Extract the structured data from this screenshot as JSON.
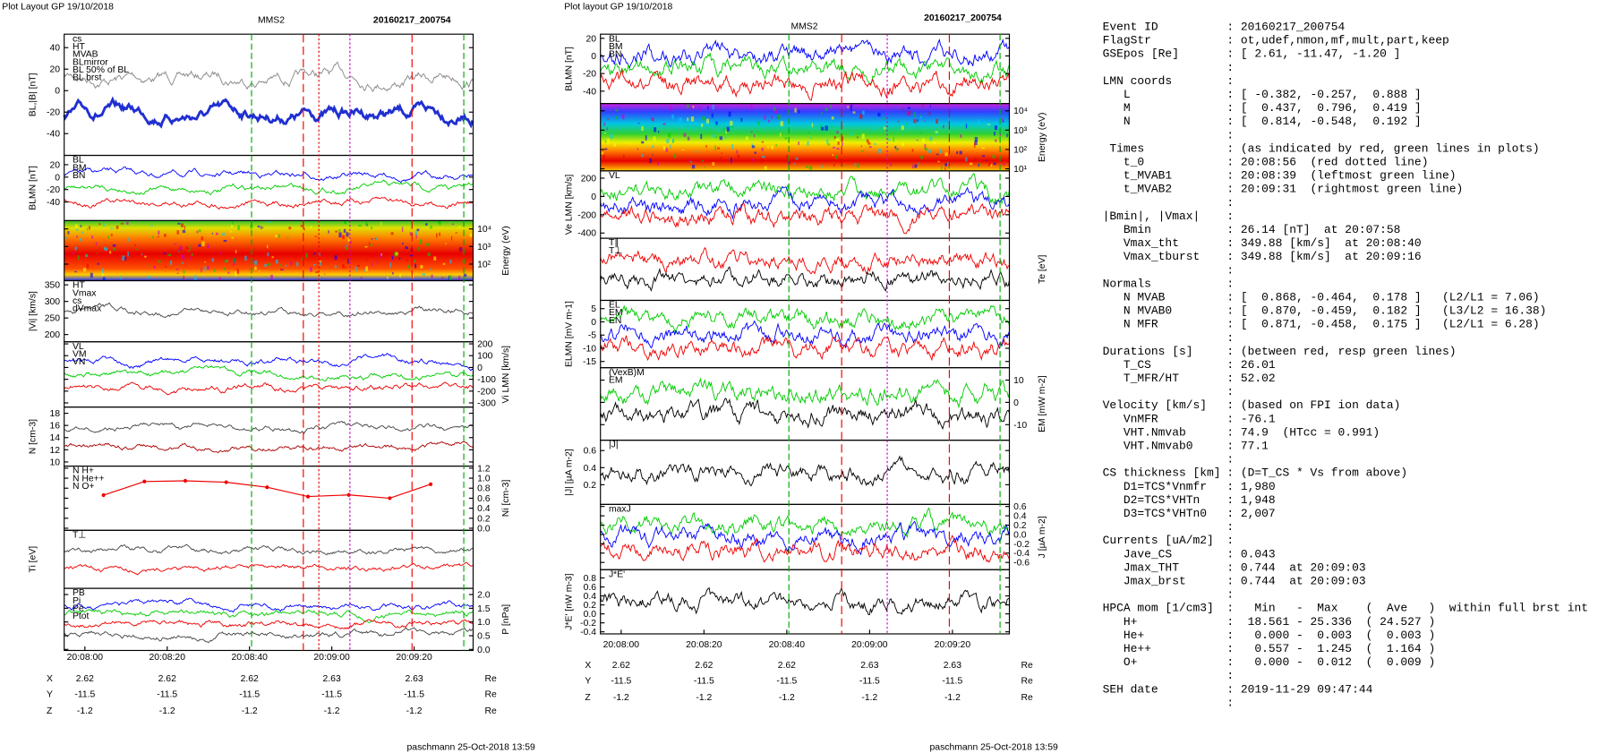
{
  "left_plot": {
    "header": "Plot Layout GP 19/10/2018",
    "spacecraft": "MMS2",
    "event": "20160217_200754",
    "panels": [
      {
        "ylabel": "BL,|B| [nT]",
        "side": "left",
        "yticks": [
          "40",
          "20",
          "0",
          "-20",
          "-40"
        ],
        "legend": [
          {
            "text": "cs",
            "color": "#e00"
          },
          {
            "text": "HT",
            "color": "#0a0"
          },
          {
            "text": "MVAB",
            "color": "#0c0"
          },
          {
            "text": "BLmirror",
            "color": "#999"
          },
          {
            "text": "BL 50% of BL",
            "color": "#00f"
          },
          {
            "text": "BL brst",
            "color": "#00f"
          }
        ],
        "traces": [
          "#888",
          "#2030d0"
        ]
      },
      {
        "ylabel": "BLMN [nT]",
        "side": "left",
        "yticks": [
          "20",
          "0",
          "-20",
          "-40"
        ],
        "legend": [
          {
            "text": "BL",
            "color": "#00f"
          },
          {
            "text": "BM",
            "color": "#0c0"
          },
          {
            "text": "BN",
            "color": "#e00"
          }
        ],
        "traces": [
          "#00f",
          "#0c0",
          "#e00"
        ]
      },
      {
        "ylabel": "Energy (eV)",
        "side": "right",
        "yticks": [
          "10⁴",
          "10³",
          "10²"
        ],
        "legend": [],
        "traces": []
      },
      {
        "ylabel": "|Vi| [km/s]",
        "side": "left",
        "yticks": [
          "350",
          "300",
          "250",
          "200"
        ],
        "legend": [
          {
            "text": "HT",
            "color": "#0a0"
          },
          {
            "text": "Vmax",
            "color": "#0cc"
          },
          {
            "text": "cs",
            "color": "#e00"
          },
          {
            "text": "dVmax",
            "color": "#00f"
          }
        ],
        "traces": [
          "#444"
        ]
      },
      {
        "ylabel": "Vi LMN [km/s]",
        "side": "right",
        "yticks": [
          "200",
          "100",
          "0",
          "-100",
          "-200",
          "-300"
        ],
        "legend": [
          {
            "text": "VL",
            "color": "#00f"
          },
          {
            "text": "VM",
            "color": "#0c0"
          },
          {
            "text": "VN",
            "color": "#e00"
          }
        ],
        "traces": [
          "#00f",
          "#0c0",
          "#e00"
        ]
      },
      {
        "ylabel": "N [cm-3]",
        "side": "left",
        "yticks": [
          "18",
          "16",
          "14",
          "12",
          "10"
        ],
        "legend": [],
        "traces": [
          "#444",
          "#a00"
        ]
      },
      {
        "ylabel": "Ni [cm-3]",
        "side": "right",
        "yticks": [
          "1.2",
          "1.0",
          "0.8",
          "0.6",
          "0.4",
          "0.2",
          "0.0"
        ],
        "legend": [
          {
            "text": "N H+",
            "color": "#0c0"
          },
          {
            "text": "N He++",
            "color": "#e00"
          },
          {
            "text": "N O+",
            "color": "#00f"
          }
        ],
        "traces": []
      },
      {
        "ylabel": "Ti [eV]",
        "side": "left",
        "yticks": [],
        "legend": [
          {
            "text": "T⊥",
            "color": "#000"
          }
        ],
        "traces": [
          "#444",
          "#e00"
        ]
      },
      {
        "ylabel": "P [nPa]",
        "side": "right",
        "yticks": [
          "2.0",
          "1.5",
          "1.0",
          "0.5",
          "0.0"
        ],
        "legend": [
          {
            "text": "PB",
            "color": "#e00"
          },
          {
            "text": "Pi",
            "color": "#0c0"
          },
          {
            "text": "Pe",
            "color": "#444"
          },
          {
            "text": "Ptot",
            "color": "#00f"
          }
        ],
        "traces": [
          "#00f",
          "#0c0",
          "#e00",
          "#444"
        ]
      }
    ],
    "xticks": [
      "20:08:00",
      "20:08:20",
      "20:08:40",
      "20:09:00",
      "20:09:20"
    ],
    "position_rows": [
      {
        "label": "X",
        "values": [
          "2.62",
          "2.62",
          "2.62",
          "2.63",
          "2.63"
        ],
        "unit": "Re"
      },
      {
        "label": "Y",
        "values": [
          "-11.5",
          "-11.5",
          "-11.5",
          "-11.5",
          "-11.5"
        ],
        "unit": "Re"
      },
      {
        "label": "Z",
        "values": [
          "-1.2",
          "-1.2",
          "-1.2",
          "-1.2",
          "-1.2"
        ],
        "unit": "Re"
      }
    ],
    "footer": "paschmann 25-Oct-2018 13:59"
  },
  "right_plot": {
    "header": "Plot layout GP 19/10/2018",
    "spacecraft": "MMS2",
    "event": "20160217_200754",
    "panels": [
      {
        "ylabel": "BLMN [nT]",
        "side": "left",
        "yticks": [
          "20",
          "0",
          "-20",
          "-40"
        ],
        "legend": [
          {
            "text": "BL",
            "color": "#00f"
          },
          {
            "text": "BM",
            "color": "#0c0"
          },
          {
            "text": "BN",
            "color": "#e00"
          }
        ],
        "traces": [
          "#00f",
          "#0c0",
          "#e00"
        ]
      },
      {
        "ylabel": "Energy (eV)",
        "side": "right",
        "yticks": [
          "10⁴",
          "10³",
          "10²",
          "10¹"
        ],
        "legend": [],
        "traces": []
      },
      {
        "ylabel": "Ve LMN [km/s]",
        "side": "left",
        "yticks": [
          "200",
          "0",
          "-200",
          "-400"
        ],
        "legend": [
          {
            "text": "VL",
            "color": "#00f"
          }
        ],
        "traces": [
          "#0c0",
          "#00f",
          "#e00"
        ]
      },
      {
        "ylabel": "Te [eV]",
        "side": "right",
        "yticks": [],
        "legend": [
          {
            "text": "T∥",
            "color": "#e00"
          },
          {
            "text": "T⊥",
            "color": "#000"
          }
        ],
        "traces": [
          "#e00",
          "#000"
        ]
      },
      {
        "ylabel": "ELMN [mV m-1]",
        "side": "left",
        "yticks": [
          "5",
          "0",
          "-5",
          "-10",
          "-15"
        ],
        "legend": [
          {
            "text": "EL",
            "color": "#00f"
          },
          {
            "text": "EM",
            "color": "#0c0"
          },
          {
            "text": "EN",
            "color": "#e00"
          }
        ],
        "traces": [
          "#0c0",
          "#00f",
          "#e00"
        ]
      },
      {
        "ylabel": "EM [mW m-2]",
        "side": "right",
        "yticks": [
          "10",
          "0",
          "-10"
        ],
        "legend": [
          {
            "text": "(VexB)M",
            "color": "#000"
          },
          {
            "text": "EM",
            "color": "#0c0"
          }
        ],
        "traces": [
          "#0c0",
          "#000"
        ]
      },
      {
        "ylabel": "|J| [µA m-2]",
        "side": "left",
        "yticks": [
          "0.6",
          "0.4",
          "0.2"
        ],
        "legend": [
          {
            "text": "|J|",
            "color": "#000"
          }
        ],
        "traces": [
          "#000"
        ]
      },
      {
        "ylabel": "J [µA m-2]",
        "side": "right",
        "yticks": [
          "0.6",
          "0.4",
          "0.2",
          "0.0",
          "-0.2",
          "-0.4",
          "-0.6"
        ],
        "legend": [
          {
            "text": "maxJ",
            "color": "#c0c"
          }
        ],
        "traces": [
          "#0c0",
          "#00f",
          "#e00"
        ]
      },
      {
        "ylabel": "J*E' [nW m-3]",
        "side": "left",
        "yticks": [
          "0.8",
          "0.6",
          "0.4",
          "0.2",
          "0.0",
          "-0.2",
          "-0.4"
        ],
        "legend": [
          {
            "text": "J*E'",
            "color": "#000"
          }
        ],
        "traces": [
          "#000"
        ]
      }
    ],
    "xticks": [
      "20:08:00",
      "20:08:20",
      "20:08:40",
      "20:09:00",
      "20:09:20"
    ],
    "position_rows": [
      {
        "label": "X",
        "values": [
          "2.62",
          "2.62",
          "2.62",
          "2.63",
          "2.63"
        ],
        "unit": "Re"
      },
      {
        "label": "Y",
        "values": [
          "-11.5",
          "-11.5",
          "-11.5",
          "-11.5",
          "-11.5"
        ],
        "unit": "Re"
      },
      {
        "label": "Z",
        "values": [
          "-1.2",
          "-1.2",
          "-1.2",
          "-1.2",
          "-1.2"
        ],
        "unit": "Re"
      }
    ],
    "footer": "paschmann 25-Oct-2018 13:59"
  },
  "info": {
    "lines": [
      [
        "Event ID",
        ": 20160217_200754"
      ],
      [
        "FlagStr",
        ": ot,udef,nmon,mf,mult,part,keep"
      ],
      [
        "GSEpos [Re]",
        ": [ 2.61, -11.47, -1.20 ]"
      ],
      [
        ":"
      ],
      [
        "LMN coords",
        ":"
      ],
      [
        "   L",
        ": [ -0.382, -0.257,  0.888 ]"
      ],
      [
        "   M",
        ": [  0.437,  0.796,  0.419 ]"
      ],
      [
        "   N",
        ": [  0.814, -0.548,  0.192 ]"
      ],
      [
        ":"
      ],
      [
        " Times",
        ": (as indicated by red, green lines in plots)"
      ],
      [
        "   t_0",
        ": 20:08:56  (red dotted line)"
      ],
      [
        "   t_MVAB1",
        ": 20:08:39  (leftmost green line)"
      ],
      [
        "   t_MVAB2",
        ": 20:09:31  (rightmost green line)"
      ],
      [
        ":"
      ],
      [
        "|Bmin|, |Vmax|",
        ":"
      ],
      [
        "   Bmin",
        ": 26.14 [nT]  at 20:07:58"
      ],
      [
        "   Vmax_tht",
        ": 349.88 [km/s]  at 20:08:40"
      ],
      [
        "   Vmax_tburst",
        ": 349.88 [km/s]  at 20:09:16"
      ],
      [
        ":"
      ],
      [
        "Normals",
        ":"
      ],
      [
        "   N MVAB",
        ": [  0.868, -0.464,  0.178 ]   (L2/L1 = 7.06)"
      ],
      [
        "   N MVAB0",
        ": [  0.870, -0.459,  0.182 ]   (L3/L2 = 16.38)"
      ],
      [
        "   N MFR",
        ": [  0.871, -0.458,  0.175 ]   (L2/L1 = 6.28)"
      ],
      [
        ":"
      ],
      [
        "Durations [s]",
        ": (between red, resp green lines)"
      ],
      [
        "   T_CS",
        ": 26.01"
      ],
      [
        "   T_MFR/HT",
        ": 52.02"
      ],
      [
        ":"
      ],
      [
        "Velocity [km/s]",
        ": (based on FPI ion data)"
      ],
      [
        "   VnMFR",
        ": -76.1"
      ],
      [
        "   VHT.Nmvab",
        ": 74.9  (HTcc = 0.991)"
      ],
      [
        "   VHT.Nmvab0",
        ": 77.1"
      ],
      [
        ":"
      ],
      [
        "CS thickness [km]",
        ": (D=T_CS * Vs from above)"
      ],
      [
        "   D1=TCS*Vnmfr",
        ": 1,980"
      ],
      [
        "   D2=TCS*VHTn",
        ": 1,948"
      ],
      [
        "   D3=TCS*VHTn0",
        ": 2,007"
      ],
      [
        ":"
      ],
      [
        "Currents [uA/m2]",
        ":"
      ],
      [
        "   Jave_CS",
        ": 0.043"
      ],
      [
        "   Jmax_THT",
        ": 0.744  at 20:09:03"
      ],
      [
        "   Jmax_brst",
        ": 0.744  at 20:09:03"
      ],
      [
        ":"
      ],
      [
        "HPCA mom [1/cm3]",
        ":   Min   -  Max    (  Ave   )  within full brst int"
      ],
      [
        "   H+",
        ":  18.561 - 25.336  ( 24.527 )"
      ],
      [
        "   He+",
        ":   0.000 -  0.003  (  0.003 )"
      ],
      [
        "   He++",
        ":   0.557 -  1.245  (  1.164 )"
      ],
      [
        "   O+",
        ":   0.000 -  0.012  (  0.009 )"
      ],
      [
        ":"
      ],
      [
        "SEH date",
        ": 2019-11-29 09:47:44"
      ],
      [
        ":"
      ]
    ]
  }
}
